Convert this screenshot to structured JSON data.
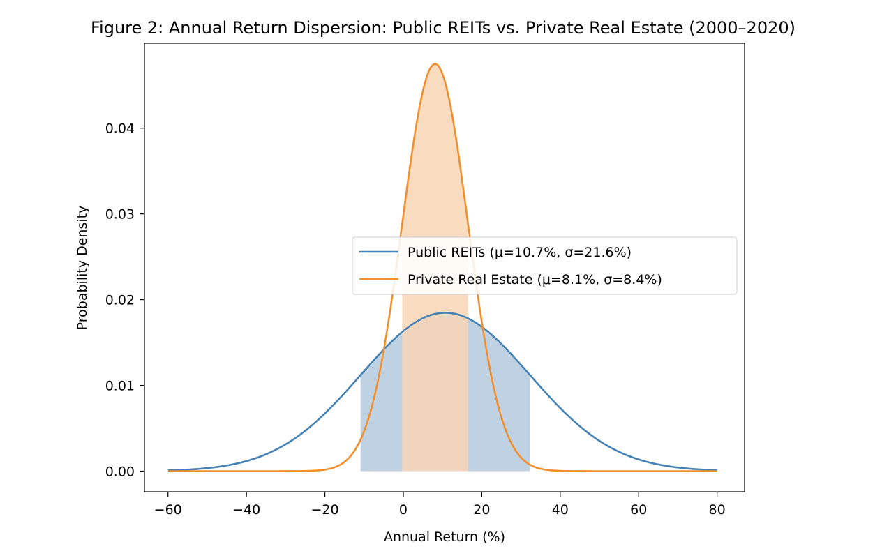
{
  "chart_data": {
    "type": "line",
    "title": "Figure 2: Annual Return Dispersion: Public REITs vs. Private Real Estate (2000–2020)",
    "xlabel": "Annual Return (%)",
    "ylabel": "Probability Density",
    "xlim": [
      -66,
      87
    ],
    "ylim": [
      -0.0024,
      0.0499
    ],
    "xticks": [
      -60,
      -40,
      -20,
      0,
      20,
      40,
      60,
      80
    ],
    "xtick_labels": [
      "−60",
      "−40",
      "−20",
      "0",
      "20",
      "40",
      "60",
      "80"
    ],
    "yticks": [
      0,
      0.01,
      0.02,
      0.03,
      0.04
    ],
    "ytick_labels": [
      "0.00",
      "0.01",
      "0.02",
      "0.03",
      "0.04"
    ],
    "x_range": [
      -60,
      80
    ],
    "grid": false,
    "legend_position": "center-right",
    "series": [
      {
        "name": "Public REITs (μ=10.7%, σ=21.6%)",
        "distribution": "normal",
        "mean": 10.7,
        "std": 21.6,
        "shaded_band": [
          -10.9,
          32.3
        ],
        "color": "#4682b4",
        "fill_color": "#bfd2e4"
      },
      {
        "name": "Private Real Estate (μ=8.1%, σ=8.4%)",
        "distribution": "normal",
        "mean": 8.1,
        "std": 8.4,
        "shaded_band": [
          -0.3,
          16.5
        ],
        "color": "#f28e2b",
        "fill_color": "#f8d6b5"
      }
    ]
  }
}
